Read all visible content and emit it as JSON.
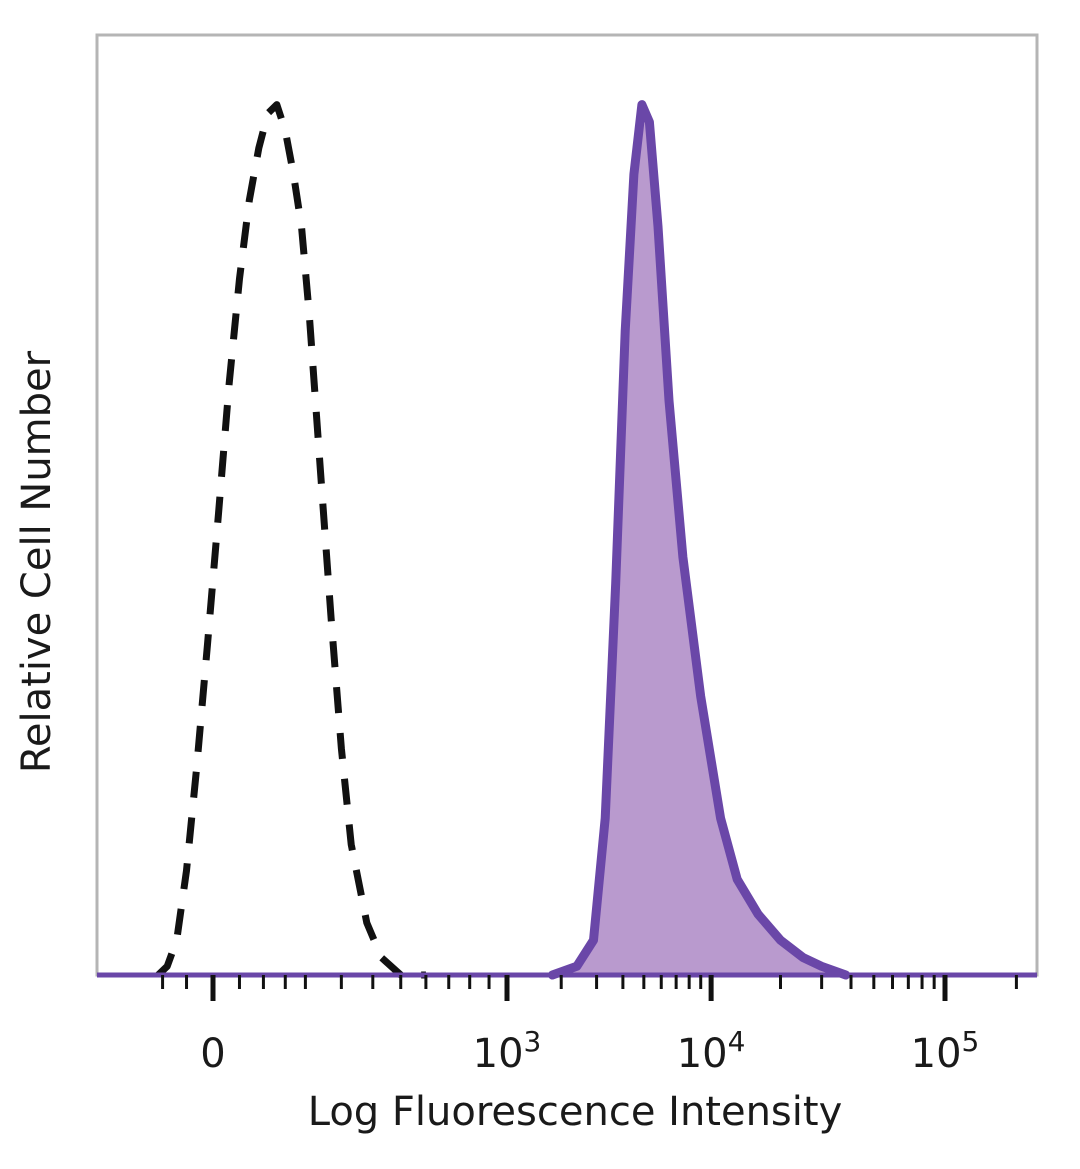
{
  "chart_data": {
    "type": "area",
    "title": "",
    "xlabel": "Log Fluorescence Intensity",
    "ylabel": "Relative Cell Number",
    "xscale": "biexponential",
    "xlim": [
      -150,
      200000
    ],
    "ylim": [
      0,
      1.08
    ],
    "grid": false,
    "legend": "none",
    "x_ticks": [
      {
        "value": 0,
        "base": "0",
        "exp": ""
      },
      {
        "value": 1000,
        "base": "10",
        "exp": "3"
      },
      {
        "value": 10000,
        "base": "10",
        "exp": "4"
      },
      {
        "value": 100000,
        "base": "10",
        "exp": "5"
      }
    ],
    "series": [
      {
        "style": "dashed",
        "color": "#111111",
        "fill": "none",
        "x": [
          -110,
          -90,
          -70,
          -50,
          -30,
          -10,
          10,
          30,
          50,
          70,
          90,
          110,
          130,
          150,
          170,
          190,
          210,
          240,
          270,
          300,
          330,
          380,
          430,
          500,
          600
        ],
        "y": [
          0.0,
          0.01,
          0.04,
          0.12,
          0.24,
          0.38,
          0.53,
          0.68,
          0.8,
          0.89,
          0.95,
          0.99,
          1.0,
          0.97,
          0.92,
          0.86,
          0.76,
          0.58,
          0.41,
          0.26,
          0.15,
          0.06,
          0.02,
          0.0,
          0.0
        ]
      },
      {
        "style": "solid",
        "color": "#6a47a8",
        "fill": "#b99ace",
        "x": [
          1800,
          2400,
          2900,
          3300,
          3700,
          4100,
          4500,
          4900,
          5300,
          5800,
          6500,
          7500,
          9000,
          11000,
          13000,
          16000,
          20000,
          25000,
          30000,
          38000
        ],
        "y": [
          0.0,
          0.01,
          0.04,
          0.18,
          0.45,
          0.74,
          0.92,
          1.0,
          0.98,
          0.86,
          0.66,
          0.48,
          0.32,
          0.18,
          0.11,
          0.07,
          0.04,
          0.02,
          0.01,
          0.0
        ]
      }
    ]
  }
}
